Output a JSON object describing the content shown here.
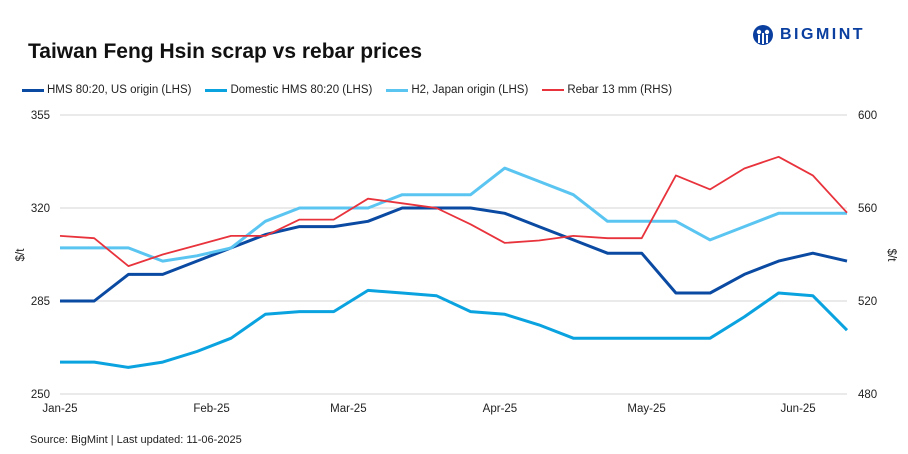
{
  "header": {
    "title": "Taiwan Feng Hsin scrap vs rebar prices",
    "logo_text": "BIGMINT",
    "brand_color": "#0a3fa0"
  },
  "footer": {
    "source": "Source: BigMint |  Last updated: 11-06-2025"
  },
  "chart_data": {
    "type": "line",
    "title": "Taiwan Feng Hsin scrap vs rebar prices",
    "ylabel": "$/t",
    "y2label": "$/t",
    "ylim": [
      250,
      355
    ],
    "yticks": [
      250,
      285,
      320,
      355
    ],
    "y2lim": [
      480,
      600
    ],
    "y2ticks": [
      480,
      520,
      560,
      600
    ],
    "xticks": [
      {
        "label": "Jan-25",
        "date": "2025-01-01"
      },
      {
        "label": "Feb-25",
        "date": "2025-02-01"
      },
      {
        "label": "Mar-25",
        "date": "2025-03-01"
      },
      {
        "label": "Apr-25",
        "date": "2025-04-01"
      },
      {
        "label": "May-25",
        "date": "2025-05-01"
      },
      {
        "label": "Jun-25",
        "date": "2025-06-01"
      }
    ],
    "grid": true,
    "legend": "top",
    "x": [
      "2025-01-01",
      "2025-01-08",
      "2025-01-15",
      "2025-01-22",
      "2025-01-29",
      "2025-02-05",
      "2025-02-12",
      "2025-02-19",
      "2025-02-26",
      "2025-03-05",
      "2025-03-12",
      "2025-03-19",
      "2025-03-26",
      "2025-04-02",
      "2025-04-09",
      "2025-04-16",
      "2025-04-23",
      "2025-04-30",
      "2025-05-07",
      "2025-05-14",
      "2025-05-21",
      "2025-05-28",
      "2025-06-04",
      "2025-06-11"
    ],
    "series": [
      {
        "name": "HMS 80:20, US origin (LHS)",
        "axis": "left",
        "color": "#0b4aa2",
        "width": 3,
        "values": [
          285,
          285,
          295,
          295,
          300,
          305,
          310,
          313,
          313,
          315,
          320,
          320,
          320,
          318,
          313,
          308,
          303,
          303,
          288,
          288,
          295,
          300,
          303,
          300
        ]
      },
      {
        "name": "Domestic HMS 80:20 (LHS)",
        "axis": "left",
        "color": "#0aa3e0",
        "width": 3,
        "values": [
          262,
          262,
          260,
          262,
          266,
          271,
          280,
          281,
          281,
          289,
          288,
          287,
          281,
          280,
          276,
          271,
          271,
          271,
          271,
          271,
          279,
          288,
          287,
          274
        ]
      },
      {
        "name": "H2, Japan origin (LHS)",
        "axis": "left",
        "color": "#5bc5f2",
        "width": 3,
        "values": [
          305,
          305,
          305,
          300,
          302,
          305,
          315,
          320,
          320,
          320,
          325,
          325,
          325,
          335,
          330,
          325,
          315,
          315,
          315,
          308,
          313,
          318,
          318,
          318
        ]
      },
      {
        "name": "Rebar 13 mm (RHS)",
        "axis": "right",
        "color": "#e8333c",
        "width": 1.8,
        "values": [
          548,
          547,
          535,
          540,
          544,
          548,
          548,
          555,
          555,
          564,
          562,
          560,
          553,
          545,
          546,
          548,
          547,
          547,
          574,
          568,
          577,
          582,
          574,
          558
        ]
      }
    ]
  }
}
